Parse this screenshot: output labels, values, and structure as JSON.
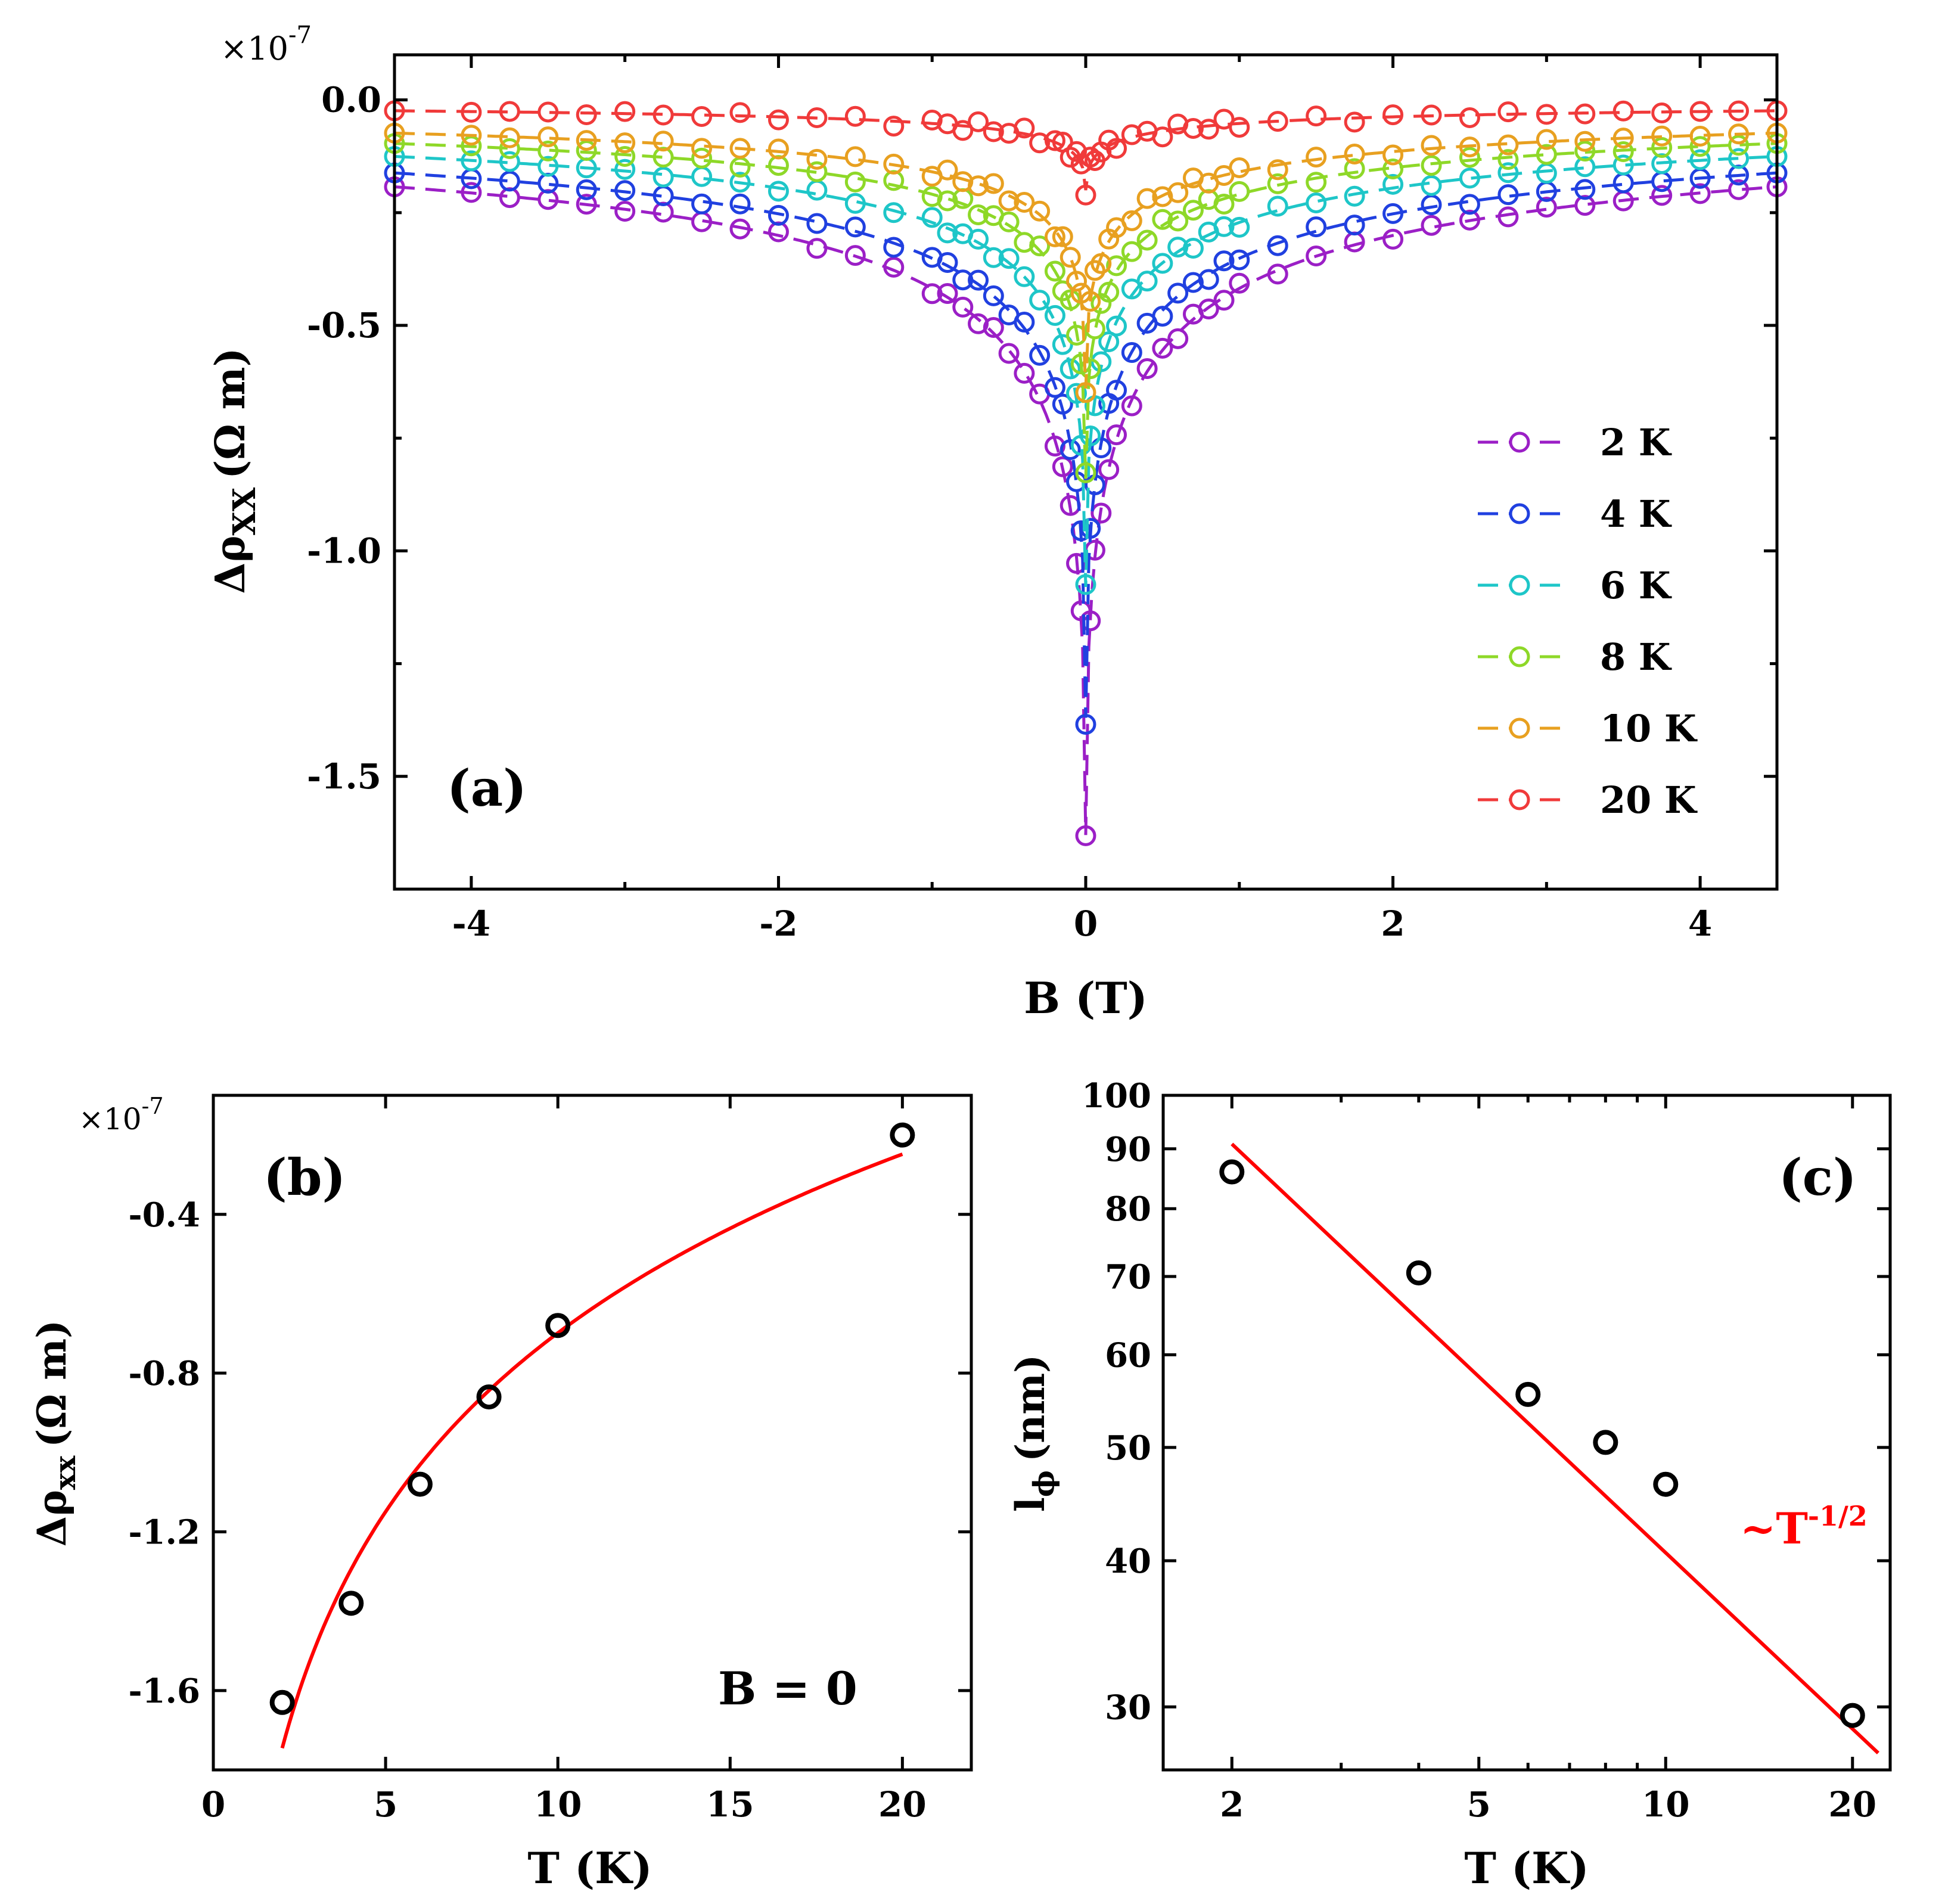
{
  "chart_data": [
    {
      "id": "a",
      "type": "scatter",
      "panel_label": "(a)",
      "title": "",
      "xlabel": "B (T)",
      "ylabel": "Δρ",
      "ylabel_sub": "XX",
      "ylabel_unit": "(Ω m)",
      "multiplier_base": "×10",
      "multiplier_exp": "-7",
      "xlim": [
        -4.5,
        4.5
      ],
      "ylim": [
        -1.75,
        0.1
      ],
      "xticks": [
        -4,
        -2,
        0,
        2,
        4
      ],
      "xtick_labels": [
        "-4",
        "-2",
        "0",
        "2",
        "4"
      ],
      "yticks": [
        0.0,
        -0.5,
        -1.0,
        -1.5
      ],
      "ytick_labels": [
        "0.0",
        "-0.5",
        "-1.0",
        "-1.5"
      ],
      "grid": false,
      "legend_position": "right",
      "series": [
        {
          "name": "2 K",
          "legend": "2 K",
          "color": "#9b1fc6",
          "alpha": 0.33,
          "a0": -1.63
        },
        {
          "name": "4 K",
          "legend": "4 K",
          "color": "#2040e0",
          "alpha": 0.33,
          "a0": -1.37
        },
        {
          "name": "6 K",
          "legend": "6 K",
          "color": "#1ec6c8",
          "alpha": 0.31,
          "a0": -1.08
        },
        {
          "name": "8 K",
          "legend": "8 K",
          "color": "#8ed828",
          "alpha": 0.3,
          "a0": -0.84
        },
        {
          "name": "10 K",
          "legend": "10 K",
          "color": "#e8a020",
          "alpha": 0.3,
          "a0": -0.64
        },
        {
          "name": "20 K",
          "legend": "20 K",
          "color": "#f03a3a",
          "alpha": 0.35,
          "a0": -0.2
        }
      ],
      "b_points": [
        -4.5,
        -4.0,
        -3.75,
        -3.5,
        -3.25,
        -3.0,
        -2.75,
        -2.5,
        -2.25,
        -2.0,
        -1.75,
        -1.5,
        -1.25,
        -1.0,
        -0.9,
        -0.8,
        -0.7,
        -0.6,
        -0.5,
        -0.4,
        -0.3,
        -0.2,
        -0.15,
        -0.1,
        -0.06,
        -0.03,
        0.0,
        0.03,
        0.06,
        0.1,
        0.15,
        0.2,
        0.3,
        0.4,
        0.5,
        0.6,
        0.7,
        0.8,
        0.9,
        1.0,
        1.25,
        1.5,
        1.75,
        2.0,
        2.25,
        2.5,
        2.75,
        3.0,
        3.25,
        3.5,
        3.75,
        4.0,
        4.25,
        4.5
      ]
    },
    {
      "id": "b",
      "type": "scatter",
      "panel_label": "(b)",
      "annotation": "B = 0",
      "xlabel": "T (K)",
      "ylabel": "Δρ",
      "ylabel_sub": "xx",
      "ylabel_unit": "(Ω m)",
      "multiplier_base": "×10",
      "multiplier_exp": "-7",
      "xlim": [
        0,
        22
      ],
      "ylim": [
        -1.8,
        -0.1
      ],
      "xticks": [
        0,
        5,
        10,
        15,
        20
      ],
      "xtick_labels": [
        "0",
        "5",
        "10",
        "15",
        "20"
      ],
      "yticks": [
        -0.4,
        -0.8,
        -1.2,
        -1.6
      ],
      "ytick_labels": [
        "-0.4",
        "-0.8",
        "-1.2",
        "-1.6"
      ],
      "grid": false,
      "points": [
        {
          "x": 2,
          "y": -1.63
        },
        {
          "x": 4,
          "y": -1.38
        },
        {
          "x": 6,
          "y": -1.08
        },
        {
          "x": 8,
          "y": -0.86
        },
        {
          "x": 10,
          "y": -0.68
        },
        {
          "x": 20,
          "y": -0.2
        }
      ],
      "fit": {
        "type": "ln",
        "form": "y = -1.745 + 0.65 * ln(T/2)",
        "T_range": [
          2,
          20
        ],
        "color": "#ff0000"
      }
    },
    {
      "id": "c",
      "type": "scatter",
      "panel_label": "(c)",
      "annotation_prefix": "~T",
      "annotation_exp": "-1/2",
      "xlabel": "T (K)",
      "ylabel": "l",
      "ylabel_sub": "ϕ",
      "ylabel_unit": "(nm)",
      "xscale": "log",
      "yscale": "log",
      "xlim": [
        1.55,
        23
      ],
      "ylim": [
        26.5,
        100
      ],
      "xticks": [
        2,
        5,
        10,
        20
      ],
      "xtick_labels": [
        "2",
        "5",
        "10",
        "20"
      ],
      "yticks": [
        30,
        40,
        50,
        60,
        70,
        80,
        90,
        100
      ],
      "ytick_labels": [
        "30",
        "40",
        "50",
        "60",
        "70",
        "80",
        "90",
        "100"
      ],
      "grid": false,
      "points": [
        {
          "x": 2,
          "y": 86
        },
        {
          "x": 4,
          "y": 70.5
        },
        {
          "x": 6,
          "y": 55.5
        },
        {
          "x": 8,
          "y": 50.5
        },
        {
          "x": 10,
          "y": 46.5
        },
        {
          "x": 20,
          "y": 29.5
        }
      ],
      "fit": {
        "type": "power",
        "form": "l = 128.5 * T^(-1/2)",
        "T_range": [
          2,
          22
        ],
        "color": "#ff0000"
      }
    }
  ]
}
